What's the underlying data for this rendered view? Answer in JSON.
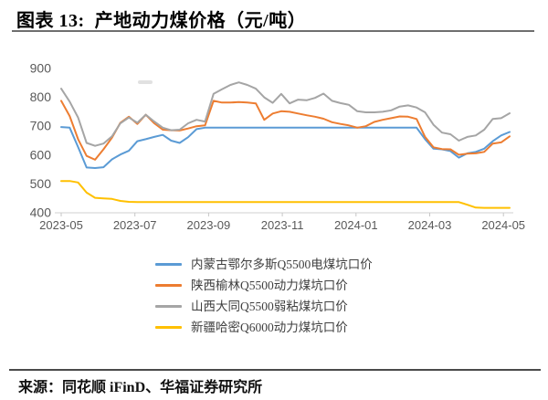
{
  "header": {
    "title": "图表 13:  产地动力煤价格（元/吨）"
  },
  "footer": {
    "source": "来源：同花顺 iFinD、华福证券研究所"
  },
  "chart_data": {
    "type": "line",
    "title": "产地动力煤价格（元/吨）",
    "xlabel": "",
    "ylabel": "",
    "x_tick_labels": [
      "2023-05",
      "2023-07",
      "2023-09",
      "2023-11",
      "2024-01",
      "2024-03",
      "2024-05"
    ],
    "x_description": "weekly observations from 2023-05 to 2024-05",
    "ylim": [
      400,
      900
    ],
    "y_ticks": [
      400,
      500,
      600,
      700,
      800,
      900
    ],
    "grid": false,
    "legend_position": "bottom-center",
    "axis_color": "#d9d9d9",
    "tick_color": "#c6c6c6",
    "label_color": "#595959",
    "series": [
      {
        "name": "内蒙古鄂尔多斯Q5500电煤坑口价",
        "color": "#5B9BD5",
        "values": [
          697,
          695,
          628,
          557,
          555,
          558,
          585,
          602,
          615,
          648,
          655,
          663,
          670,
          650,
          642,
          662,
          690,
          695,
          695,
          695,
          695,
          695,
          695,
          695,
          695,
          695,
          695,
          695,
          695,
          695,
          695,
          695,
          695,
          695,
          695,
          695,
          695,
          695,
          695,
          695,
          695,
          695,
          695,
          655,
          622,
          620,
          614,
          591,
          606,
          611,
          622,
          648,
          668,
          680
        ]
      },
      {
        "name": "陕西榆林Q5500动力煤坑口价",
        "color": "#ED7D31",
        "values": [
          788,
          735,
          655,
          597,
          584,
          620,
          660,
          712,
          733,
          708,
          740,
          710,
          688,
          686,
          685,
          692,
          700,
          703,
          788,
          782,
          782,
          784,
          782,
          779,
          722,
          744,
          752,
          750,
          744,
          738,
          733,
          726,
          714,
          708,
          703,
          695,
          700,
          715,
          722,
          728,
          734,
          733,
          725,
          663,
          627,
          621,
          620,
          601,
          605,
          606,
          611,
          640,
          644,
          665
        ]
      },
      {
        "name": "山西大同Q5500弱粘煤坑口价",
        "color": "#A5A5A5",
        "values": [
          830,
          785,
          730,
          642,
          632,
          640,
          665,
          710,
          730,
          712,
          740,
          716,
          695,
          686,
          688,
          710,
          722,
          716,
          812,
          828,
          843,
          852,
          843,
          830,
          800,
          781,
          812,
          779,
          792,
          790,
          798,
          813,
          788,
          780,
          774,
          752,
          748,
          748,
          750,
          755,
          768,
          772,
          765,
          748,
          705,
          678,
          672,
          650,
          663,
          668,
          688,
          725,
          728,
          745
        ]
      },
      {
        "name": "新疆哈密Q6000动力煤坑口价",
        "color": "#FFC000",
        "values": [
          510,
          510,
          505,
          470,
          452,
          450,
          448,
          441,
          438,
          437,
          437,
          437,
          437,
          437,
          437,
          437,
          437,
          437,
          437,
          437,
          437,
          437,
          437,
          437,
          437,
          437,
          437,
          437,
          437,
          437,
          437,
          437,
          437,
          437,
          437,
          437,
          437,
          437,
          437,
          437,
          437,
          437,
          437,
          437,
          437,
          437,
          437,
          437,
          428,
          418,
          417,
          417,
          417,
          417
        ]
      }
    ]
  }
}
